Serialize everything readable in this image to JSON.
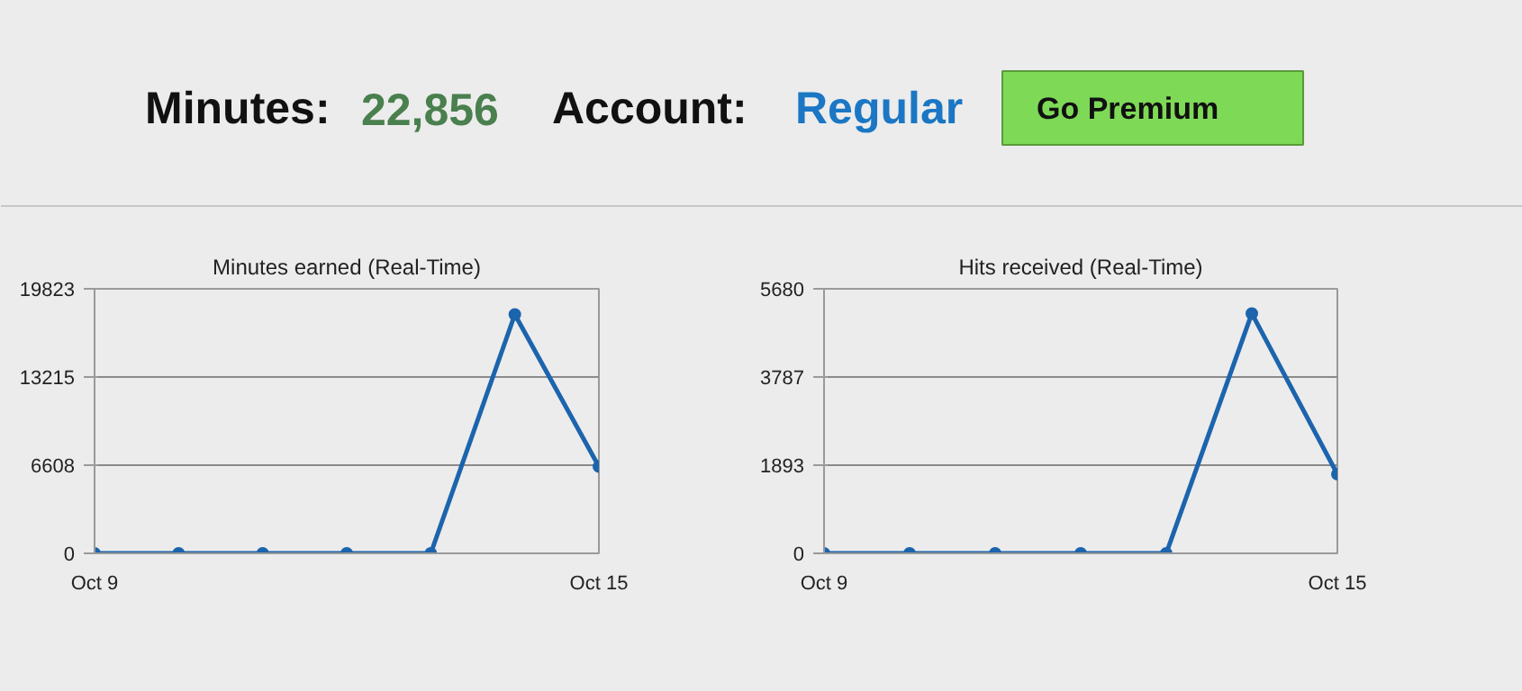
{
  "chart_data": [
    {
      "type": "other",
      "annotations": [
        "Minutes:",
        "22,856",
        "Account:",
        "Regular",
        "Go Premium"
      ],
      "colors": [
        "#111111",
        "#4a7f4e",
        "#111111",
        "#1b77c4",
        "#111111"
      ]
    },
    {
      "type": "line",
      "title": "Minutes earned (Real-Time)",
      "categories": [
        "Oct 9",
        null,
        null,
        null,
        null,
        null,
        "Oct 15"
      ],
      "series": [
        {
          "color": "#1c64ad",
          "values": [
            0,
            0,
            0,
            0,
            0,
            17900,
            6500
          ]
        }
      ],
      "ylim": [
        0,
        19823
      ],
      "yticks": [
        0,
        6608,
        13215,
        19823
      ],
      "grid": "y",
      "marker": "circle",
      "line_style": "solid"
    },
    {
      "type": "line",
      "title": "Hits received (Real-Time)",
      "categories": [
        "Oct 9",
        null,
        null,
        null,
        null,
        null,
        "Oct 15"
      ],
      "series": [
        {
          "color": "#1c64ad",
          "values": [
            0,
            0,
            0,
            0,
            0,
            5150,
            1700
          ]
        }
      ],
      "ylim": [
        0,
        5680
      ],
      "yticks": [
        0,
        1893,
        3787,
        5680
      ],
      "grid": "y",
      "marker": "circle",
      "line_style": "solid"
    }
  ]
}
